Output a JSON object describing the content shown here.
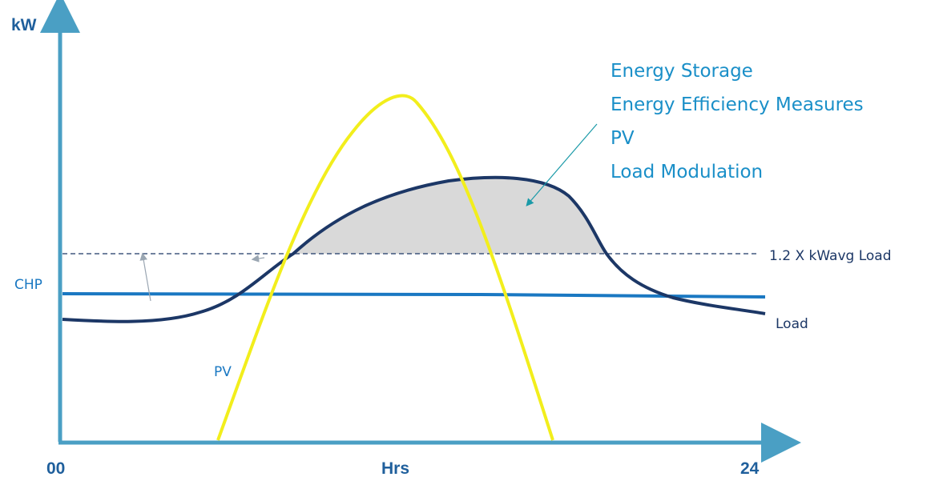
{
  "axes": {
    "y_label": "kW",
    "x_label": "Hrs",
    "x_start": "00",
    "x_end": "24"
  },
  "labels": {
    "chp": "CHP",
    "pv": "PV",
    "load": "Load",
    "threshold": "1.2 X kWavg Load"
  },
  "callout": {
    "lines": [
      "Energy Storage",
      "Energy Efficiency Measures",
      "PV",
      "Load Modulation"
    ]
  },
  "colors": {
    "axis": "#4a9fc4",
    "load": "#1c3766",
    "pv": "#f2ee1c",
    "chp": "#1a78c2",
    "shade": "#d9d9d9",
    "threshold": "#1c3766",
    "callout_text": "#1a8fc8",
    "chp_label": "#1a78c2",
    "load_label": "#1c3766"
  }
}
